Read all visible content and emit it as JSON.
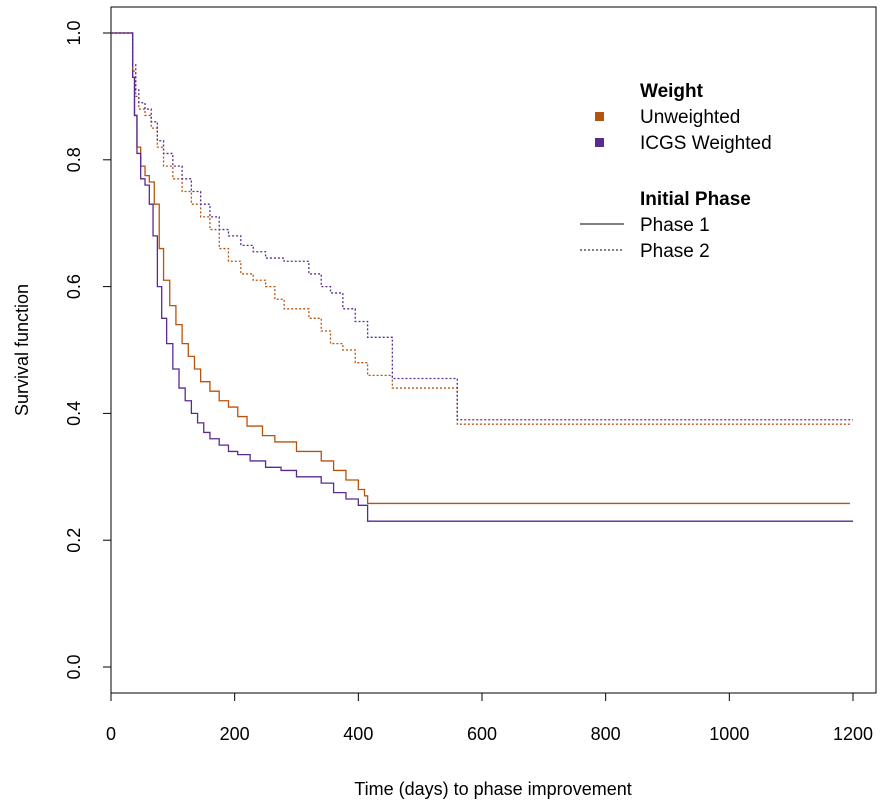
{
  "chart_data": {
    "type": "line",
    "title": "",
    "xlabel": "Time (days) to phase improvement",
    "ylabel": "Survival function",
    "xlim": [
      0,
      1200
    ],
    "ylim": [
      0.0,
      1.0
    ],
    "x_ticks": [
      0,
      200,
      400,
      600,
      800,
      1000,
      1200
    ],
    "y_ticks": [
      0.0,
      0.2,
      0.4,
      0.6,
      0.8,
      1.0
    ],
    "y_tick_labels": [
      "0.0",
      "0.2",
      "0.4",
      "0.6",
      "0.8",
      "1.0"
    ],
    "grid": false,
    "step": true,
    "colors": {
      "Unweighted": "#b5540f",
      "ICGS Weighted": "#5b2a91"
    },
    "legend": {
      "position": "top-right",
      "weight_title": "Weight",
      "weight_items": [
        {
          "label": "Unweighted",
          "color": "#b5540f"
        },
        {
          "label": "ICGS Weighted",
          "color": "#5b2a91"
        }
      ],
      "phase_title": "Initial Phase",
      "phase_items": [
        {
          "label": "Phase 1",
          "dash": "solid"
        },
        {
          "label": "Phase 2",
          "dash": "dotted"
        }
      ]
    },
    "series": [
      {
        "weight": "Unweighted",
        "phase": "Phase 1",
        "color": "#b5540f",
        "dash": "solid",
        "x": [
          0,
          30,
          35,
          38,
          42,
          48,
          55,
          62,
          70,
          78,
          85,
          95,
          105,
          115,
          125,
          135,
          145,
          160,
          175,
          190,
          205,
          220,
          245,
          265,
          300,
          340,
          360,
          380,
          400,
          410,
          415,
          1195
        ],
        "y": [
          1.0,
          1.0,
          0.93,
          0.87,
          0.82,
          0.79,
          0.775,
          0.765,
          0.73,
          0.66,
          0.61,
          0.57,
          0.54,
          0.51,
          0.49,
          0.47,
          0.45,
          0.435,
          0.42,
          0.41,
          0.395,
          0.38,
          0.365,
          0.355,
          0.34,
          0.325,
          0.31,
          0.295,
          0.28,
          0.27,
          0.258,
          0.258
        ]
      },
      {
        "weight": "ICGS Weighted",
        "phase": "Phase 1",
        "color": "#5b2a91",
        "dash": "solid",
        "x": [
          0,
          30,
          35,
          38,
          42,
          48,
          55,
          62,
          68,
          75,
          82,
          90,
          100,
          110,
          120,
          130,
          140,
          150,
          160,
          175,
          190,
          205,
          225,
          250,
          275,
          300,
          340,
          360,
          380,
          400,
          415,
          1200
        ],
        "y": [
          1.0,
          1.0,
          0.93,
          0.87,
          0.81,
          0.77,
          0.76,
          0.73,
          0.68,
          0.6,
          0.55,
          0.51,
          0.47,
          0.44,
          0.42,
          0.4,
          0.385,
          0.37,
          0.36,
          0.35,
          0.34,
          0.335,
          0.325,
          0.315,
          0.31,
          0.3,
          0.29,
          0.275,
          0.265,
          0.255,
          0.23,
          0.23
        ]
      },
      {
        "weight": "Unweighted",
        "phase": "Phase 2",
        "color": "#b5540f",
        "dash": "dotted",
        "x": [
          0,
          30,
          35,
          40,
          45,
          55,
          65,
          75,
          85,
          100,
          115,
          130,
          145,
          160,
          175,
          190,
          210,
          230,
          250,
          265,
          280,
          300,
          320,
          340,
          355,
          375,
          395,
          415,
          455,
          560,
          1195
        ],
        "y": [
          1.0,
          1.0,
          0.94,
          0.9,
          0.88,
          0.87,
          0.85,
          0.82,
          0.79,
          0.77,
          0.75,
          0.73,
          0.71,
          0.69,
          0.66,
          0.64,
          0.62,
          0.61,
          0.6,
          0.58,
          0.565,
          0.565,
          0.55,
          0.53,
          0.51,
          0.5,
          0.48,
          0.46,
          0.44,
          0.383,
          0.383
        ]
      },
      {
        "weight": "ICGS Weighted",
        "phase": "Phase 2",
        "color": "#5b2a91",
        "dash": "dotted",
        "x": [
          0,
          30,
          35,
          40,
          45,
          55,
          65,
          75,
          85,
          100,
          115,
          130,
          145,
          160,
          175,
          190,
          210,
          230,
          250,
          265,
          280,
          300,
          320,
          340,
          355,
          375,
          395,
          415,
          455,
          560,
          1200
        ],
        "y": [
          1.0,
          1.0,
          0.95,
          0.91,
          0.89,
          0.88,
          0.86,
          0.83,
          0.81,
          0.79,
          0.77,
          0.75,
          0.73,
          0.71,
          0.69,
          0.68,
          0.665,
          0.655,
          0.645,
          0.645,
          0.64,
          0.64,
          0.62,
          0.6,
          0.59,
          0.565,
          0.545,
          0.52,
          0.455,
          0.39,
          0.39
        ]
      }
    ]
  }
}
